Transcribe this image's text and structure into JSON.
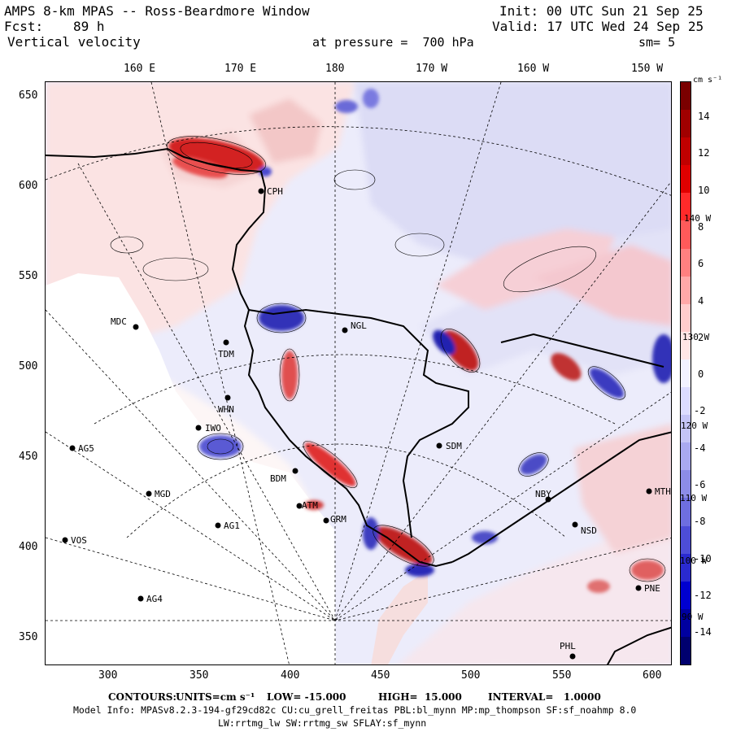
{
  "header": {
    "title": "AMPS 8-km MPAS -- Ross-Beardmore Window",
    "fcst_label": "Fcst:",
    "fcst_value": "89 h",
    "variable": "Vertical velocity",
    "init": "Init: 00 UTC Sun 21 Sep 25",
    "valid": "Valid: 17 UTC Wed 24 Sep 25",
    "pressure": "at pressure =  700 hPa",
    "smooth": "sm= 5"
  },
  "top_axis": [
    "160 E",
    "170 E",
    "180",
    "170 W",
    "160 W",
    "150 W"
  ],
  "left_axis": [
    "650",
    "600",
    "550",
    "500",
    "450",
    "400",
    "350"
  ],
  "bottom_axis": [
    "300",
    "350",
    "400",
    "450",
    "500",
    "550",
    "600"
  ],
  "colorbar": {
    "units": "cm s⁻¹",
    "labels": [
      "14",
      "12",
      "10",
      "8",
      "6",
      "4",
      "2",
      "0",
      "-2",
      "-4",
      "-6",
      "-8",
      "-10",
      "-12",
      "-14"
    ],
    "colors": [
      "#7a0000",
      "#a00000",
      "#c00000",
      "#e00000",
      "#ff2a2a",
      "#ff5a5a",
      "#ff8080",
      "#ffa8a8",
      "#ffcccc",
      "#ffe6e6",
      "#f2f2ff",
      "#dcdcff",
      "#c4c4f6",
      "#a9a9f0",
      "#8c8ce8",
      "#6e6ee0",
      "#4d4dd8",
      "#2a2ad0",
      "#0000d0",
      "#0000a0",
      "#00006e"
    ],
    "overlay_labels": [
      "140 W",
      "130 W",
      "120 W",
      "110 W",
      "100 W",
      "90 W"
    ]
  },
  "stations": [
    {
      "name": "CPH"
    },
    {
      "name": "MDC"
    },
    {
      "name": "NGL"
    },
    {
      "name": "TDM"
    },
    {
      "name": "WHN"
    },
    {
      "name": "IWO"
    },
    {
      "name": "AG5"
    },
    {
      "name": "SDM"
    },
    {
      "name": "BDM"
    },
    {
      "name": "MGD"
    },
    {
      "name": "AG1"
    },
    {
      "name": "VOS"
    },
    {
      "name": "AG4"
    },
    {
      "name": "GRM"
    },
    {
      "name": "NBY"
    },
    {
      "name": "NSD"
    },
    {
      "name": "MTH"
    },
    {
      "name": "PNE"
    },
    {
      "name": "PHL"
    },
    {
      "name": "ATM"
    }
  ],
  "footer": {
    "contours_label": "CONTOURS:",
    "units": "UNITS=cm s⁻¹",
    "low": "LOW= -15.000",
    "high": "HIGH=  15.000",
    "interval": "INTERVAL=   1.0000",
    "model_info": "Model Info: MPASv8.2.3-194-gf29cd82c CU:cu_grell_freitas PBL:bl_mynn MP:mp_thompson SF:sf_noahmp 8.0",
    "model_info2": "LW:rrtmg_lw SW:rrtmg_sw SFLAY:sf_mynn"
  }
}
